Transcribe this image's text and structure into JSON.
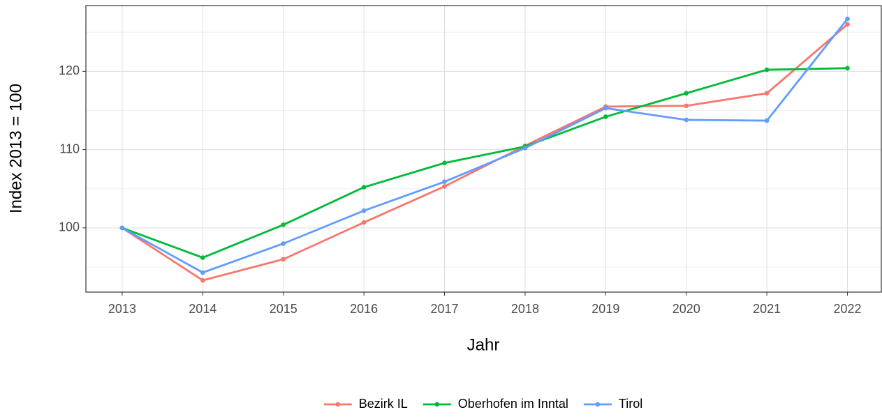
{
  "chart_data": {
    "type": "line",
    "x_label": "Jahr",
    "y_label": "Index  2013  = 100",
    "x": [
      2013,
      2014,
      2015,
      2016,
      2017,
      2018,
      2019,
      2020,
      2021,
      2022
    ],
    "series": [
      {
        "name": "Bezirk IL",
        "color": "#F8766D",
        "values": [
          100,
          93.3,
          96.0,
          100.7,
          105.3,
          110.5,
          115.5,
          115.6,
          117.2,
          126.0
        ]
      },
      {
        "name": "Oberhofen im Inntal",
        "color": "#00BA38",
        "values": [
          100,
          96.2,
          100.4,
          105.2,
          108.3,
          110.4,
          114.2,
          117.2,
          120.2,
          120.4
        ]
      },
      {
        "name": "Tirol",
        "color": "#619CFF",
        "values": [
          100,
          94.3,
          98.0,
          102.2,
          105.9,
          110.2,
          115.3,
          113.8,
          113.7,
          126.7
        ]
      }
    ],
    "xlim": [
      2012.55,
      2022.42
    ],
    "xticks": [
      2013,
      2014,
      2015,
      2016,
      2017,
      2018,
      2019,
      2020,
      2021,
      2022
    ],
    "ylim": [
      91.8,
      128.4
    ],
    "yticks": [
      100,
      110,
      120
    ],
    "y_minor_ticks": [
      95,
      105,
      115,
      125
    ],
    "grid": true,
    "legend": "bottom"
  }
}
